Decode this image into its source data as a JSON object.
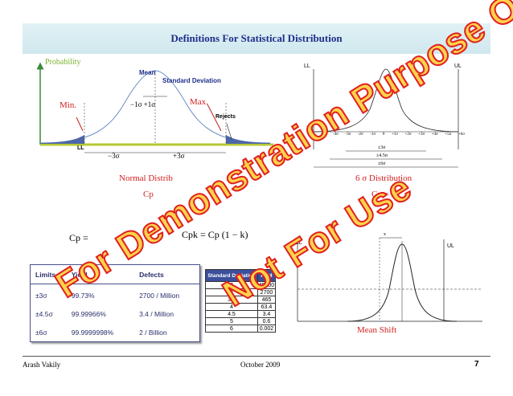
{
  "title": "Definitions For Statistical Distribution",
  "normal": {
    "probability_label": "Probability",
    "mean_label": "Mean",
    "std_label": "Standard Deviation",
    "min_label": "Min.",
    "max_label": "Max.",
    "sigma_label": "−1σ  +1σ",
    "rejects_label": "Rejects",
    "ll_label": "LL",
    "m3s": "−3σ",
    "p3s": "+3σ",
    "caption": "Normal Distrib",
    "cp_caption": "Cp"
  },
  "six_sigma": {
    "ll": "LL",
    "ul": "UL",
    "ticks": [
      "-6σ",
      "-5σ",
      "-4σ",
      "-3σ",
      "-2σ",
      "-1σ",
      "0",
      "+1σ",
      "+2σ",
      "+3σ",
      "+4σ",
      "+5σ",
      "+6σ"
    ],
    "range3": "±3σ",
    "range45": "±4.5σ",
    "range6": "±6σ",
    "caption": "6 σ Distribution",
    "cp": "Cp = 2"
  },
  "formulas": {
    "cp": "Cp = ",
    "cpk": "Cpk = Cp (1 − k)"
  },
  "yield_table": {
    "headers": [
      "Limits",
      "Yield",
      "Defects"
    ],
    "rows": [
      [
        "±3σ",
        "99.73%",
        "2700 / Million"
      ],
      [
        "±4.5σ",
        "99.99966%",
        "3.4 / Million"
      ],
      [
        "±6σ",
        "99.9999998%",
        "2 / Billion"
      ]
    ]
  },
  "ppm_table": {
    "headers": [
      "Standard Deviation",
      "PPM"
    ],
    "rows": [
      [
        "2",
        "45500"
      ],
      [
        "3",
        "2700"
      ],
      [
        "3.5",
        "465"
      ],
      [
        "4",
        "63.4"
      ],
      [
        "4.5",
        "3.4"
      ],
      [
        "5",
        "0.6"
      ],
      [
        "6",
        "0.002"
      ]
    ]
  },
  "mean_shift": {
    "ll": "LL",
    "ul": "UL",
    "shift_mark": "x",
    "caption": "Mean Shift"
  },
  "watermark": {
    "line1": "For Demonstration Purpose Only",
    "line2": "Not For Use"
  },
  "footer": {
    "author": "Arash Vakily",
    "date": "October 2009",
    "page": "7"
  }
}
